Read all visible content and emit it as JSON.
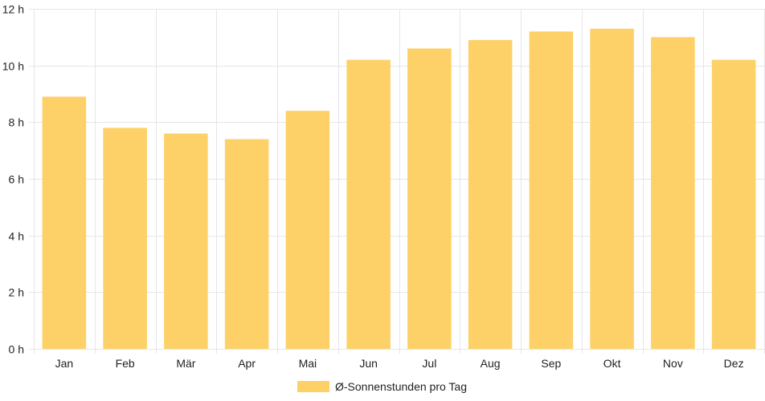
{
  "chart_data": {
    "type": "bar",
    "categories": [
      "Jan",
      "Feb",
      "Mär",
      "Apr",
      "Mai",
      "Jun",
      "Jul",
      "Aug",
      "Sep",
      "Okt",
      "Nov",
      "Dez"
    ],
    "series": [
      {
        "name": "Ø-Sonnenstunden pro Tag",
        "values": [
          8.9,
          7.8,
          7.6,
          7.4,
          8.4,
          10.2,
          10.6,
          10.9,
          11.2,
          11.3,
          11.0,
          10.2
        ],
        "color": "#FDD167"
      }
    ],
    "title": "",
    "xlabel": "",
    "ylabel": "",
    "ylim": [
      0,
      12
    ],
    "yticks": [
      0,
      2,
      4,
      6,
      8,
      10,
      12
    ],
    "y_unit_suffix": " h",
    "grid": true,
    "grid_color": "#e6e6e6",
    "legend": {
      "position": "bottom",
      "label": "Ø-Sonnenstunden pro Tag"
    }
  }
}
